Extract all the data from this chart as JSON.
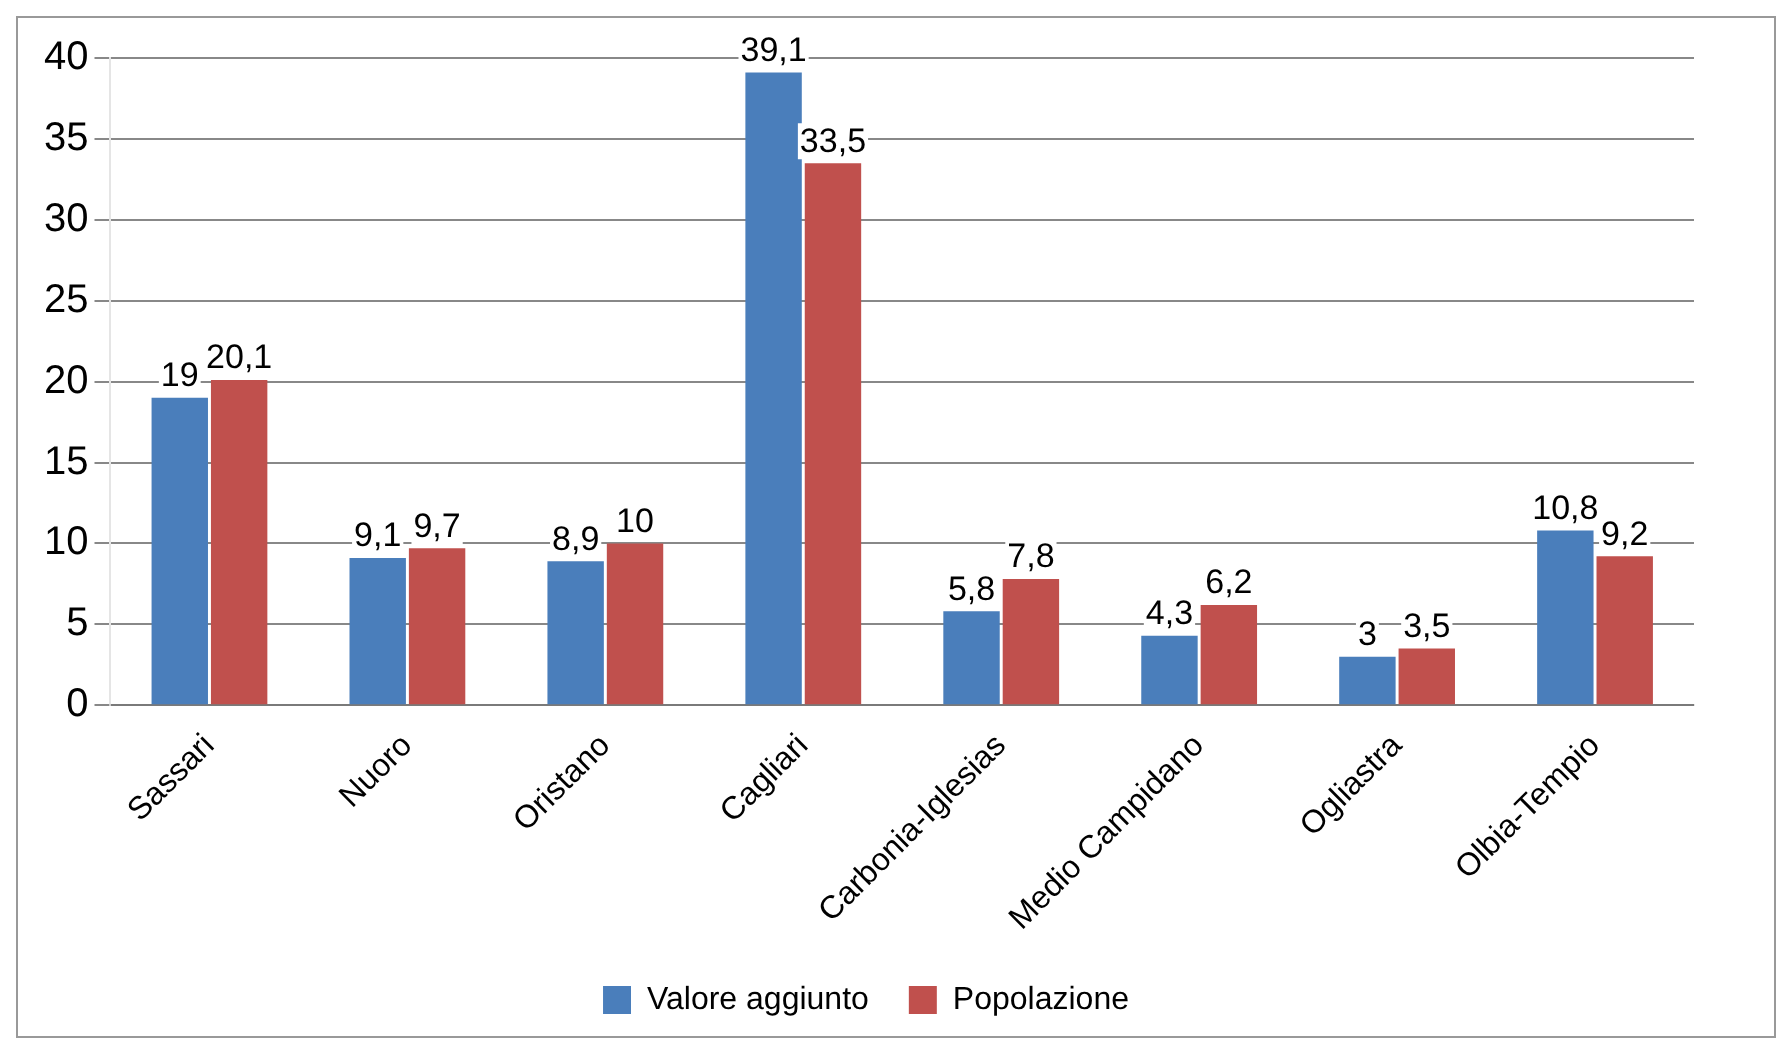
{
  "chart_data": {
    "type": "bar",
    "categories": [
      "Sassari",
      "Nuoro",
      "Oristano",
      "Cagliari",
      "Carbonia-Iglesias",
      "Medio Campidano",
      "Ogliastra",
      "Olbia-Tempio"
    ],
    "series": [
      {
        "name": "Valore aggiunto",
        "color": "#4a7ebb",
        "values": [
          19,
          9.1,
          8.9,
          39.1,
          5.8,
          4.3,
          3,
          10.8
        ],
        "value_labels": [
          "19",
          "9,1",
          "8,9",
          "39,1",
          "5,8",
          "4,3",
          "3",
          "10,8"
        ]
      },
      {
        "name": "Popolazione",
        "color": "#c0504d",
        "values": [
          20.1,
          9.7,
          10,
          33.5,
          7.8,
          6.2,
          3.5,
          9.2
        ],
        "value_labels": [
          "20,1",
          "9,7",
          "10",
          "33,5",
          "7,8",
          "6,2",
          "3,5",
          "9,2"
        ]
      }
    ],
    "ylim": [
      0,
      40
    ],
    "yticks": [
      0,
      5,
      10,
      15,
      20,
      25,
      30,
      35,
      40
    ],
    "grid": "y",
    "legend": "bottom"
  }
}
